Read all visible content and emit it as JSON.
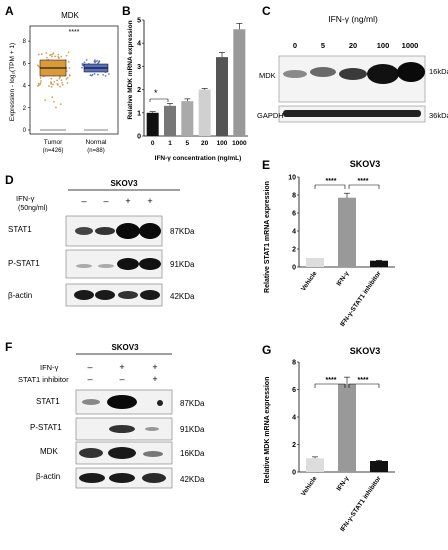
{
  "panels": {
    "A": {
      "letter": "A",
      "title": "MDK",
      "ylabel": "Expression - log₂(TPM + 1)",
      "significance": "****",
      "groups": [
        {
          "label": "Tumor",
          "n": "(n=426)",
          "color": "#d99a3c"
        },
        {
          "label": "Normal",
          "n": "(n=88)",
          "color": "#5a6fbf"
        }
      ],
      "yticks": [
        "0",
        "2",
        "4",
        "6",
        "8"
      ],
      "chart_data": {
        "type": "boxplot",
        "categories": [
          "Tumor",
          "Normal"
        ],
        "medians": [
          6.2,
          5.8
        ],
        "q1": [
          5.5,
          5.4
        ],
        "q3": [
          6.7,
          6.0
        ],
        "ylim": [
          0,
          9
        ]
      }
    },
    "B": {
      "letter": "B",
      "ylabel": "Relative MDK mRNA expression",
      "xlabel": "IFN-γ concentration (ng/mL)",
      "significance": "*",
      "yticks": [
        "0",
        "1",
        "2",
        "3",
        "4",
        "5"
      ],
      "chart_data": {
        "type": "bar",
        "categories": [
          "0",
          "1",
          "5",
          "20",
          "100",
          "1000"
        ],
        "values": [
          1.0,
          1.3,
          1.5,
          2.0,
          3.4,
          4.6
        ],
        "errors": [
          0.05,
          0.1,
          0.1,
          0.05,
          0.2,
          0.25
        ],
        "colors": [
          "#111111",
          "#777777",
          "#aaaaaa",
          "#d0d0d0",
          "#555555",
          "#999999"
        ],
        "ylim": [
          0,
          5
        ]
      }
    },
    "C": {
      "letter": "C",
      "treatment": "IFN-γ (ng/ml)",
      "doses": [
        "0",
        "5",
        "20",
        "100",
        "1000"
      ],
      "rows": [
        {
          "protein": "MDK",
          "size": "16kDa"
        },
        {
          "protein": "GAPDH",
          "size": "36kDa"
        }
      ]
    },
    "D": {
      "letter": "D",
      "cell": "SKOV3",
      "treatment": "IFN-γ",
      "treatment_dose": "(50ng/ml)",
      "lanes": [
        "–",
        "–",
        "+",
        "+"
      ],
      "rows": [
        {
          "protein": "STAT1",
          "size": "87KDa"
        },
        {
          "protein": "P-STAT1",
          "size": "91KDa"
        },
        {
          "protein": "β-actin",
          "size": "42KDa"
        }
      ]
    },
    "E": {
      "letter": "E",
      "title": "SKOV3",
      "ylabel": "Relative STAT1 mRNA expression",
      "significance": [
        "****",
        "****"
      ],
      "yticks": [
        "0",
        "2",
        "4",
        "6",
        "8",
        "10"
      ],
      "chart_data": {
        "type": "bar",
        "categories": [
          "Vehicle",
          "IFN-γ",
          "IFN-γ-STAT1 inhibitor"
        ],
        "values": [
          1.0,
          7.7,
          0.7
        ],
        "errors": [
          0.0,
          0.5,
          0.05
        ],
        "colors": [
          "#dddddd",
          "#999999",
          "#111111"
        ],
        "ylim": [
          0,
          10
        ]
      }
    },
    "F": {
      "letter": "F",
      "cell": "SKOV3",
      "treatments": [
        {
          "label": "IFN-γ",
          "lanes": [
            "–",
            "+",
            "+"
          ]
        },
        {
          "label": "STAT1 inhibitor",
          "lanes": [
            "–",
            "–",
            "+"
          ]
        }
      ],
      "rows": [
        {
          "protein": "STAT1",
          "size": "87KDa"
        },
        {
          "protein": "P-STAT1",
          "size": "91KDa"
        },
        {
          "protein": "MDK",
          "size": "16KDa"
        },
        {
          "protein": "β-actin",
          "size": "42KDa"
        }
      ]
    },
    "G": {
      "letter": "G",
      "title": "SKOV3",
      "ylabel": "Relative MDK mRNA expression",
      "significance": [
        "****",
        "****"
      ],
      "yticks": [
        "0",
        "2",
        "4",
        "6",
        "8"
      ],
      "chart_data": {
        "type": "bar",
        "categories": [
          "Vehicle",
          "IFN-γ",
          "IFN-γ-STAT1 inhibitor"
        ],
        "values": [
          1.0,
          6.4,
          0.8
        ],
        "errors": [
          0.1,
          0.5,
          0.05
        ],
        "colors": [
          "#dddddd",
          "#999999",
          "#111111"
        ],
        "ylim": [
          0,
          8
        ]
      }
    }
  }
}
